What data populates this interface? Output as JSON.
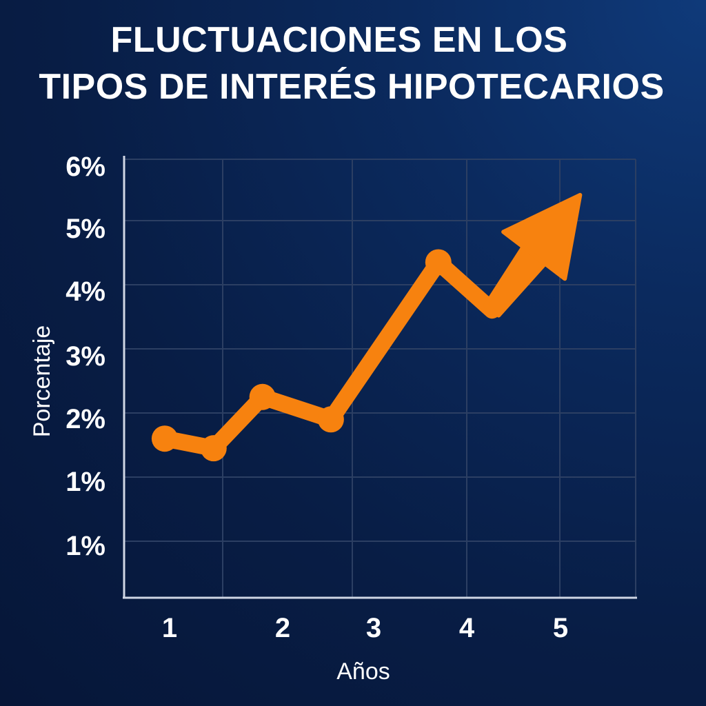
{
  "title_lines": [
    "FLUCTUACIONES EN LOS",
    "TIPOS DE INTERÉS HIPOTECARIOS"
  ],
  "colors": {
    "background": "#081d45",
    "line": "#f7820f",
    "grid": "#2c3f63",
    "axis": "#cfd6e4",
    "text": "#ffffff"
  },
  "chart_data": {
    "type": "line",
    "title": "FLUCTUACIONES EN LOS TIPOS DE INTERÉS HIPOTECARIOS",
    "xlabel": "Años",
    "ylabel": "Porcentaje",
    "x_ticks": [
      "1",
      "2",
      "3",
      "4",
      "5"
    ],
    "y_ticks": [
      "1%",
      "1%",
      "2%",
      "3%",
      "4%",
      "5%",
      "6%"
    ],
    "grid": true,
    "series": [
      {
        "x": [
          0.95,
          1.45,
          1.95,
          2.65,
          3.75,
          4.3
        ],
        "y": [
          1.6,
          1.45,
          2.25,
          1.9,
          4.35,
          3.6
        ],
        "markers": [
          true,
          true,
          true,
          true,
          true,
          false
        ],
        "end_arrow": {
          "x": 5.2,
          "y": 5.4
        }
      }
    ]
  }
}
